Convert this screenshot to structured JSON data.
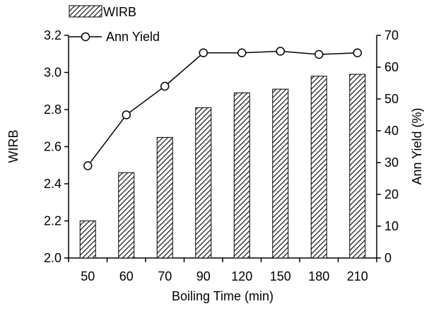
{
  "chart_data": {
    "type": "bar",
    "title": "",
    "xlabel": "Boiling Time (min)",
    "ylabel": "WIRB",
    "y2label": "Ann Yield (%)",
    "categories": [
      "50",
      "60",
      "70",
      "90",
      "120",
      "150",
      "180",
      "210"
    ],
    "ylim": [
      2.0,
      3.2
    ],
    "y_ticks": [
      "2.0",
      "2.2",
      "2.4",
      "2.6",
      "2.8",
      "3.0",
      "3.2"
    ],
    "y2lim": [
      0,
      70
    ],
    "y2_ticks": [
      "0",
      "10",
      "20",
      "30",
      "40",
      "50",
      "60",
      "70"
    ],
    "grid": false,
    "legend_position": "top-left",
    "series": [
      {
        "name": "WIRB",
        "type": "bar",
        "axis": "left",
        "style": "diagonal-hatch",
        "values": [
          2.2,
          2.46,
          2.65,
          2.81,
          2.89,
          2.91,
          2.98,
          2.99
        ]
      },
      {
        "name": "Ann Yield",
        "type": "line",
        "axis": "right",
        "marker": "open-circle",
        "values": [
          29,
          45,
          54,
          64.5,
          64.5,
          65,
          64,
          64.5
        ]
      }
    ]
  }
}
